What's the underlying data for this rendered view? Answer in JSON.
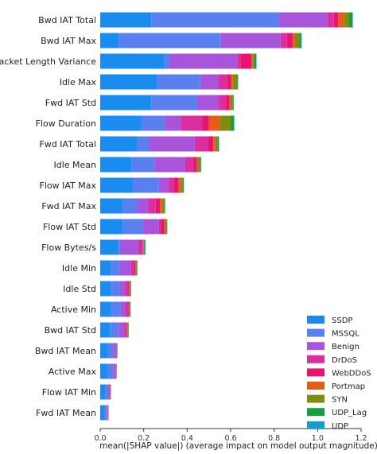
{
  "chart_data": {
    "type": "bar",
    "orientation": "horizontal",
    "stacked": true,
    "xlabel": "mean(|SHAP value|) (average impact on model output magnitude)",
    "xlim": [
      0,
      1.2
    ],
    "xticks": [
      "0.0",
      "0.2",
      "0.4",
      "0.6",
      "0.8",
      "1.0",
      "1.2"
    ],
    "legend_position": "bottom-right",
    "grid": false,
    "categories": [
      "Bwd IAT Total",
      "Bwd IAT Max",
      "Packet Length Variance",
      "Idle Max",
      "Fwd IAT Std",
      "Flow Duration",
      "Fwd IAT Total",
      "Idle Mean",
      "Flow IAT Max",
      "Fwd IAT Max",
      "Flow IAT Std",
      "Flow Bytes/s",
      "Idle Min",
      "Idle Std",
      "Active Min",
      "Bwd IAT Std",
      "Bwd IAT Mean",
      "Active Max",
      "Flow IAT Min",
      "Fwd IAT Mean"
    ],
    "series": [
      {
        "name": "SSDP",
        "color": "#1a8cf0",
        "values": [
          0.235,
          0.085,
          0.295,
          0.26,
          0.235,
          0.19,
          0.17,
          0.145,
          0.15,
          0.105,
          0.105,
          0.085,
          0.05,
          0.05,
          0.05,
          0.045,
          0.035,
          0.035,
          0.025,
          0.02
        ]
      },
      {
        "name": "MSSQL",
        "color": "#5a80f0",
        "values": [
          0.585,
          0.47,
          0.025,
          0.2,
          0.21,
          0.105,
          0.055,
          0.105,
          0.12,
          0.065,
          0.09,
          0.005,
          0.04,
          0.04,
          0.045,
          0.04,
          0.025,
          0.025,
          0.01,
          0.007
        ]
      },
      {
        "name": "Benign",
        "color": "#a855dc",
        "values": [
          0.225,
          0.275,
          0.31,
          0.085,
          0.1,
          0.075,
          0.21,
          0.14,
          0.045,
          0.05,
          0.075,
          0.085,
          0.05,
          0.025,
          0.02,
          0.025,
          0.012,
          0.01,
          0.007,
          0.005
        ]
      },
      {
        "name": "DrDoS",
        "color": "#dc2f9f",
        "values": [
          0.03,
          0.03,
          0.015,
          0.04,
          0.03,
          0.1,
          0.06,
          0.04,
          0.025,
          0.035,
          0.01,
          0.02,
          0.015,
          0.015,
          0.015,
          0.01,
          0.003,
          0.002,
          0.003,
          0.002
        ]
      },
      {
        "name": "WebDDoS",
        "color": "#e8156e",
        "values": [
          0.02,
          0.025,
          0.05,
          0.015,
          0.02,
          0.03,
          0.025,
          0.015,
          0.02,
          0.02,
          0.015,
          0.002,
          0.006,
          0.004,
          0.003,
          0.003,
          0.001,
          0.001,
          0.001,
          0.001
        ]
      },
      {
        "name": "Portmap",
        "color": "#e85d16",
        "values": [
          0.025,
          0.01,
          0.007,
          0.01,
          0.005,
          0.05,
          0.01,
          0.005,
          0.01,
          0.01,
          0.005,
          0.001,
          0.002,
          0.002,
          0.002,
          0.002,
          0.001,
          0.001,
          0.001,
          0.001
        ]
      },
      {
        "name": "SYN",
        "color": "#7f8c0f",
        "values": [
          0.025,
          0.02,
          0.005,
          0.02,
          0.01,
          0.05,
          0.01,
          0.01,
          0.01,
          0.01,
          0.005,
          0.003,
          0.005,
          0.003,
          0.002,
          0.003,
          0.001,
          0.001,
          0.001,
          0.001
        ]
      },
      {
        "name": "UDP_Lag",
        "color": "#14a03c",
        "values": [
          0.015,
          0.01,
          0.01,
          0.004,
          0.004,
          0.015,
          0.006,
          0.004,
          0.004,
          0.003,
          0.003,
          0.002,
          0.002,
          0.002,
          0.002,
          0.002,
          0.001,
          0.001,
          0.001,
          0.001
        ]
      },
      {
        "name": "UDP",
        "color": "#1a9cc8",
        "values": [
          0.002,
          0.002,
          0.002,
          0.001,
          0.001,
          0.002,
          0.001,
          0.001,
          0.001,
          0.001,
          0.001,
          0.005,
          0.001,
          0.001,
          0.001,
          0.001,
          0.001,
          0.001,
          0.001,
          0.001
        ]
      }
    ]
  }
}
